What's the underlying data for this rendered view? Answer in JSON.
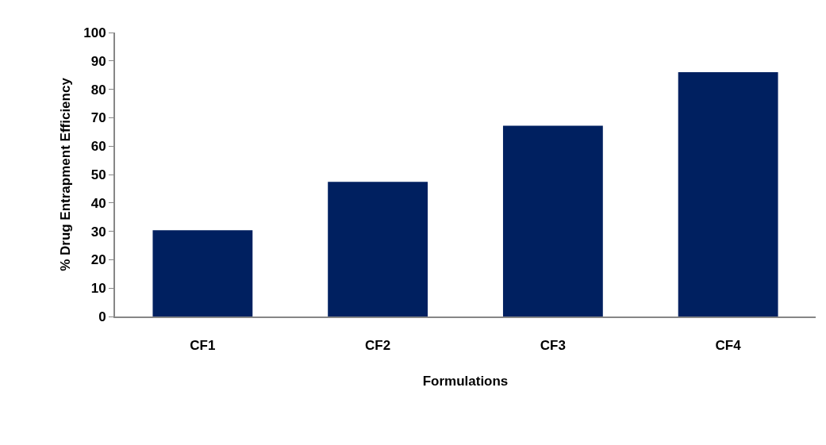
{
  "chart_data": {
    "type": "bar",
    "xlabel": "Formulations",
    "ylabel": "% Drug Entrapment Efficiency",
    "categories": [
      "CF1",
      "CF2",
      "CF3",
      "CF4"
    ],
    "values": [
      30.4,
      47.4,
      67.2,
      86.0
    ],
    "color": "#002060",
    "ylim": [
      0,
      100
    ],
    "yticks": [
      0,
      10,
      20,
      30,
      40,
      50,
      60,
      70,
      80,
      90,
      100
    ]
  }
}
